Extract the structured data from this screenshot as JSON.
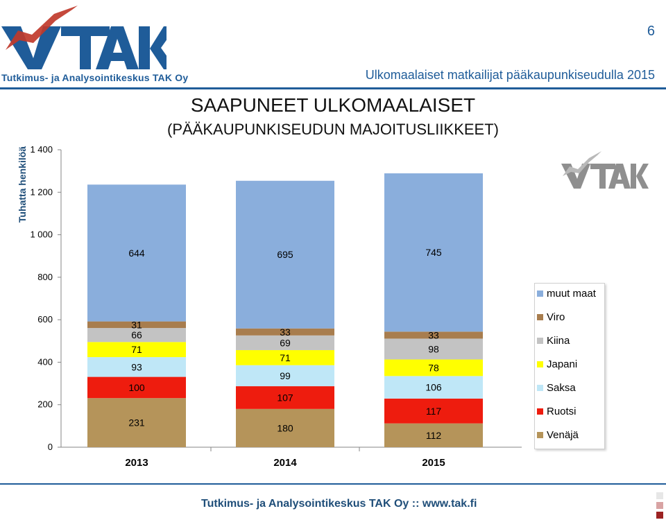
{
  "header": {
    "page_number": "6",
    "title": "Ulkomaalaiset matkailijat pääkaupunkiseudulla 2015",
    "logo_text": "TAK",
    "logo_subtitle": "Tutkimus- ja Analysointikeskus TAK Oy"
  },
  "footer": {
    "text": "Tutkimus- ja Analysointikeskus TAK Oy  ::  www.tak.fi"
  },
  "colors": {
    "brand_blue": "#1f5c99",
    "logo_red": "#c0392b"
  },
  "chart_data": {
    "type": "stacked-bar",
    "title": "SAAPUNEET ULKOMAALAISET",
    "subtitle": "(PÄÄKAUPUNKISEUDUN MAJOITUSLIIKKEET)",
    "ylabel": "Tuhatta henkilöä",
    "xlabel": "",
    "ylim": [
      0,
      1400
    ],
    "yticks": [
      0,
      200,
      400,
      600,
      800,
      1000,
      1200,
      1400
    ],
    "ytick_labels": [
      "0",
      "200",
      "400",
      "600",
      "800",
      "1 000",
      "1 200",
      "1 400"
    ],
    "categories": [
      "2013",
      "2014",
      "2015"
    ],
    "series": [
      {
        "name": "Venäjä",
        "color": "#b5945a",
        "values": [
          231,
          180,
          112
        ]
      },
      {
        "name": "Ruotsi",
        "color": "#ee1c0e",
        "values": [
          100,
          107,
          117
        ]
      },
      {
        "name": "Saksa",
        "color": "#bfe7f7",
        "values": [
          93,
          99,
          106
        ]
      },
      {
        "name": "Japani",
        "color": "#ffff00",
        "values": [
          71,
          71,
          78
        ]
      },
      {
        "name": "Kiina",
        "color": "#c3c3c3",
        "values": [
          66,
          69,
          98
        ]
      },
      {
        "name": "Viro",
        "color": "#a87d4e",
        "values": [
          31,
          33,
          33
        ]
      },
      {
        "name": "muut maat",
        "color": "#8aaedc",
        "values": [
          644,
          695,
          745
        ]
      }
    ],
    "grid": false,
    "legend_position": "right"
  }
}
